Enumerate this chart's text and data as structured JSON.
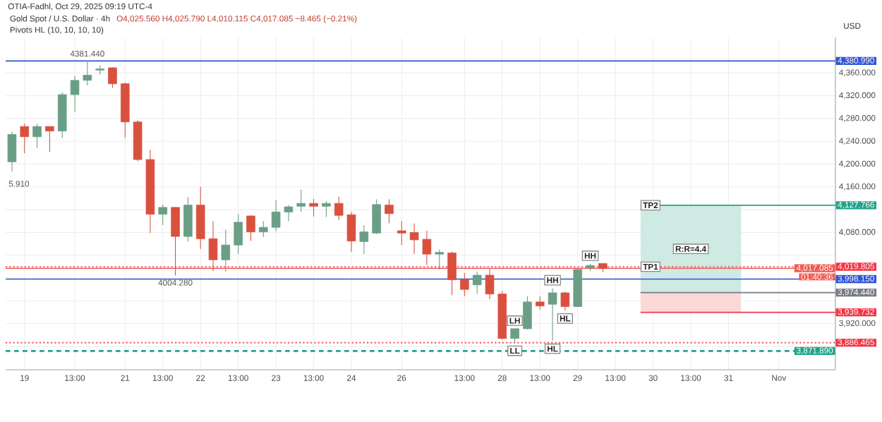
{
  "chart_data": {
    "type": "candlestick",
    "title": "Gold Spot / U.S. Dollar · 4h",
    "subtitle": "Pivots HL (10, 10, 10, 10)",
    "ylabel": "USD",
    "categories": [
      null,
      "19",
      null,
      null,
      null,
      "13:00",
      null,
      null,
      null,
      "21",
      null,
      null,
      "13:00",
      null,
      null,
      "22",
      null,
      null,
      "13:00",
      null,
      null,
      "23",
      null,
      null,
      "13:00",
      null,
      null,
      "24",
      null,
      null,
      null,
      "26",
      null,
      null,
      null,
      null,
      "13:00",
      null,
      null,
      "28",
      null,
      null,
      "13:00",
      null,
      null,
      "29",
      null,
      null,
      "13:00",
      null,
      null,
      "30",
      null,
      null,
      "13:00",
      null,
      null,
      "31",
      null,
      null,
      null,
      "Nov",
      null,
      null,
      null,
      null
    ],
    "ohlc": [
      [
        4204,
        4257,
        4187,
        4252
      ],
      [
        4266,
        4271,
        4219,
        4248
      ],
      [
        4248,
        4271,
        4228,
        4266
      ],
      [
        4266,
        4266,
        4221,
        4258
      ],
      [
        4258,
        4326,
        4246,
        4322
      ],
      [
        4322,
        4355,
        4292,
        4347
      ],
      [
        4347,
        4381.44,
        4338,
        4356
      ],
      [
        4365,
        4373,
        4357,
        4367
      ],
      [
        4369,
        4370,
        4334,
        4341
      ],
      [
        4341,
        4343,
        4246,
        4274
      ],
      [
        4274,
        4277,
        4205,
        4208
      ],
      [
        4208,
        4225,
        4079,
        4112
      ],
      [
        4112,
        4129,
        4093,
        4124
      ],
      [
        4124,
        4124,
        4004.28,
        4073
      ],
      [
        4073,
        4142,
        4064,
        4128
      ],
      [
        4128,
        4160,
        4051,
        4069
      ],
      [
        4069,
        4100,
        4012,
        4032
      ],
      [
        4032,
        4085,
        4011,
        4058
      ],
      [
        4058,
        4112,
        4042,
        4098
      ],
      [
        4109,
        4110,
        4065,
        4081
      ],
      [
        4081,
        4100,
        4072,
        4089
      ],
      [
        4089,
        4137,
        4082,
        4116
      ],
      [
        4116,
        4128,
        4100,
        4125
      ],
      [
        4126,
        4155,
        4116,
        4131
      ],
      [
        4131,
        4139,
        4108,
        4126
      ],
      [
        4126,
        4135,
        4107,
        4131
      ],
      [
        4131,
        4143,
        4102,
        4110
      ],
      [
        4111,
        4116,
        4046,
        4065
      ],
      [
        4064,
        4093,
        4042,
        4081
      ],
      [
        4079,
        4138,
        4077,
        4129
      ],
      [
        4128,
        4138,
        4096,
        4113
      ],
      [
        4083,
        4100,
        4058,
        4079
      ],
      [
        4080,
        4096,
        4042,
        4067
      ],
      [
        4068,
        4083,
        4023,
        4042
      ],
      [
        4042,
        4050,
        4015,
        4045
      ],
      [
        4044,
        4046,
        3970,
        3997
      ],
      [
        3997,
        4009,
        3968,
        3980
      ],
      [
        3988,
        4011,
        3972,
        4005
      ],
      [
        4005,
        4016,
        3963,
        3972
      ],
      [
        3972,
        3977,
        3892,
        3894
      ],
      [
        3894,
        3911,
        3886.465,
        3911
      ],
      [
        3911,
        3968,
        3910,
        3958
      ],
      [
        3958,
        3968,
        3945,
        3951
      ],
      [
        3954,
        3982,
        3890,
        3974
      ],
      [
        3974,
        3976,
        3943,
        3950
      ],
      [
        3950,
        4016,
        3949,
        4015
      ],
      [
        4018,
        4025,
        4012,
        4022
      ],
      [
        4025.56,
        4025.79,
        4010.115,
        4017.085
      ],
      null,
      null,
      null,
      null,
      null,
      null,
      null,
      null,
      null,
      null,
      null,
      null,
      null,
      null,
      null,
      null,
      null,
      null
    ],
    "ylim": [
      3839,
      4422
    ],
    "yticks": [
      {
        "value": 3880,
        "label": null
      },
      {
        "value": 3920,
        "label": "3,920.000"
      },
      {
        "value": 3960,
        "label": null
      },
      {
        "value": 4000,
        "label": null
      },
      {
        "value": 4040,
        "label": null
      },
      {
        "value": 4080,
        "label": "4,080.000"
      },
      {
        "value": 4120,
        "label": null
      },
      {
        "value": 4160,
        "label": "4,160.000"
      },
      {
        "value": 4200,
        "label": "4,200.000"
      },
      {
        "value": 4240,
        "label": "4,240.000"
      },
      {
        "value": 4280,
        "label": "4,280.000"
      },
      {
        "value": 4320,
        "label": "4,320.000"
      },
      {
        "value": 4360,
        "label": "4,360.000"
      }
    ],
    "grid": true,
    "ref_lines": [
      {
        "axis": "y",
        "value": 4380.99,
        "label": "4,380.990",
        "color": "#2f55d4",
        "line_style": "solid"
      },
      {
        "axis": "y",
        "value": 4127.766,
        "label": "4,127.766",
        "color": "#22a38a",
        "line_style": "solid"
      },
      {
        "axis": "y",
        "value": 4017.085,
        "label": "4,017.085",
        "color": "#ef5b50",
        "line_style": "solid"
      },
      {
        "axis": "y",
        "value": 4019.805,
        "label": "4,019.805",
        "color": "#f23645",
        "line_style": "dotted"
      },
      {
        "axis": "y",
        "value": 3998.15,
        "label": "3,998.150",
        "color": "#2f55d4",
        "line_style": "solid"
      },
      {
        "axis": "y",
        "value": 3974.44,
        "label": "3,974.440",
        "color": "#787b86",
        "line_style": "solid"
      },
      {
        "axis": "y",
        "value": 3939.732,
        "label": "3,939.732",
        "color": "#f23645",
        "line_style": "solid"
      },
      {
        "axis": "y",
        "value": 3886.465,
        "label": "3,886.465",
        "color": "#f23645",
        "line_style": "dotted"
      },
      {
        "axis": "y",
        "value": 3871.89,
        "label": "3,871.890",
        "color": "#22a38a",
        "line_style": "dashed"
      }
    ],
    "bands": [
      {
        "axis": "y",
        "from": 3974.44,
        "to": 4127.766,
        "color": "#cfeae3"
      },
      {
        "axis": "y",
        "from": 3939.732,
        "to": 3974.44,
        "color": "#fbd9d9"
      }
    ],
    "annotations": [
      "OTIA-Fadhl, Oct 29, 2025 09:19 UTC-4",
      "O4,025.560 H4,025.790 L4,010.115 C4,017.085 −8.465 (−0.21%)",
      "01:40:36",
      "5.910",
      "R:R=4.4",
      {
        "text": "4381.440",
        "y": 4381.44
      },
      {
        "text": "4004.280",
        "y": 4004.28
      },
      {
        "text": "HH",
        "y": 4025
      },
      {
        "text": "HH",
        "y": 3982
      },
      {
        "text": "HL",
        "y": 3943
      },
      {
        "text": "LH",
        "y": 3911
      },
      {
        "text": "HL",
        "y": 3890
      },
      {
        "text": "LL",
        "y": 3886.465
      },
      {
        "text": "TP2",
        "y": 4127.766
      },
      {
        "text": "TP1",
        "y": 4019.805
      }
    ]
  }
}
